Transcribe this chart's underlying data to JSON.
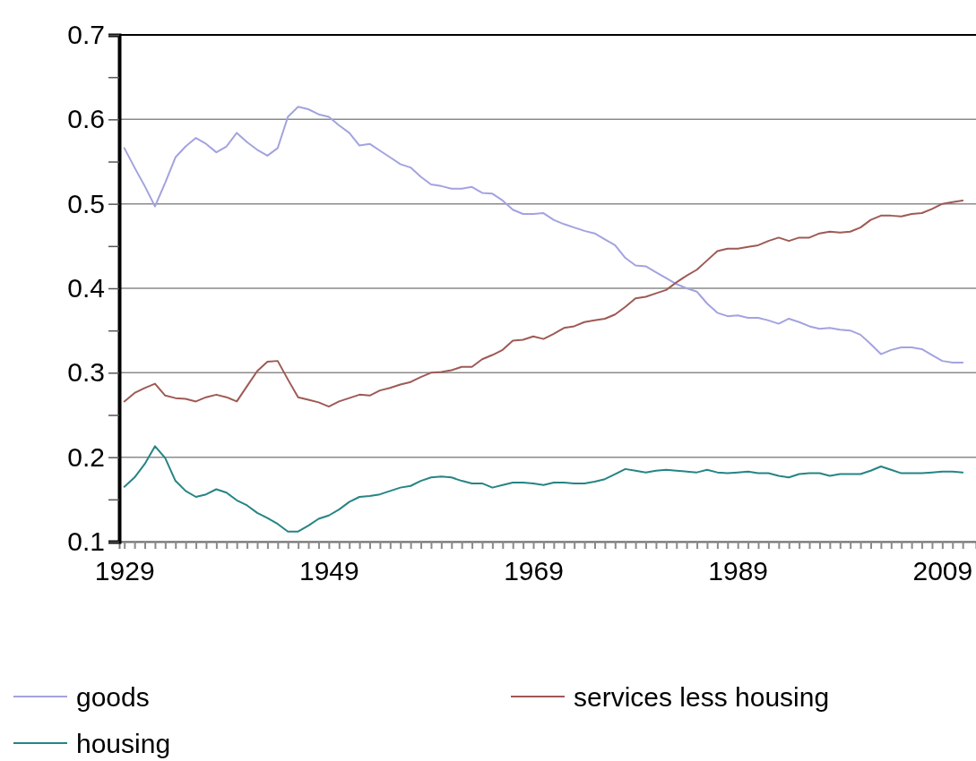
{
  "chart_data": {
    "type": "line",
    "x": [
      1929,
      1930,
      1931,
      1932,
      1933,
      1934,
      1935,
      1936,
      1937,
      1938,
      1939,
      1940,
      1941,
      1942,
      1943,
      1944,
      1945,
      1946,
      1947,
      1948,
      1949,
      1950,
      1951,
      1952,
      1953,
      1954,
      1955,
      1956,
      1957,
      1958,
      1959,
      1960,
      1961,
      1962,
      1963,
      1964,
      1965,
      1966,
      1967,
      1968,
      1969,
      1970,
      1971,
      1972,
      1973,
      1974,
      1975,
      1976,
      1977,
      1978,
      1979,
      1980,
      1981,
      1982,
      1983,
      1984,
      1985,
      1986,
      1987,
      1988,
      1989,
      1990,
      1991,
      1992,
      1993,
      1994,
      1995,
      1996,
      1997,
      1998,
      1999,
      2000,
      2001,
      2002,
      2003,
      2004,
      2005,
      2006,
      2007,
      2008,
      2009,
      2010,
      2011
    ],
    "series": [
      {
        "name": "goods",
        "color": "#a3a3e0",
        "values": [
          0.566,
          0.543,
          0.521,
          0.497,
          0.525,
          0.555,
          0.568,
          0.578,
          0.571,
          0.561,
          0.568,
          0.584,
          0.573,
          0.564,
          0.557,
          0.566,
          0.603,
          0.615,
          0.612,
          0.606,
          0.603,
          0.593,
          0.584,
          0.569,
          0.571,
          0.563,
          0.555,
          0.547,
          0.543,
          0.532,
          0.523,
          0.521,
          0.518,
          0.518,
          0.52,
          0.513,
          0.512,
          0.504,
          0.493,
          0.488,
          0.488,
          0.489,
          0.481,
          0.476,
          0.472,
          0.468,
          0.465,
          0.458,
          0.451,
          0.436,
          0.427,
          0.426,
          0.419,
          0.412,
          0.405,
          0.4,
          0.396,
          0.382,
          0.371,
          0.367,
          0.368,
          0.365,
          0.365,
          0.362,
          0.358,
          0.364,
          0.36,
          0.355,
          0.352,
          0.353,
          0.351,
          0.35,
          0.345,
          0.334,
          0.322,
          0.327,
          0.33,
          0.33,
          0.328,
          0.321,
          0.314,
          0.312,
          0.312
        ]
      },
      {
        "name": "services less housing",
        "color": "#9e5a55",
        "values": [
          0.266,
          0.276,
          0.282,
          0.287,
          0.273,
          0.27,
          0.269,
          0.266,
          0.271,
          0.274,
          0.271,
          0.266,
          0.284,
          0.302,
          0.313,
          0.314,
          0.292,
          0.271,
          0.268,
          0.265,
          0.26,
          0.266,
          0.27,
          0.274,
          0.273,
          0.279,
          0.282,
          0.286,
          0.289,
          0.295,
          0.3,
          0.301,
          0.303,
          0.307,
          0.307,
          0.316,
          0.321,
          0.327,
          0.338,
          0.339,
          0.343,
          0.34,
          0.346,
          0.353,
          0.355,
          0.36,
          0.362,
          0.364,
          0.369,
          0.378,
          0.388,
          0.39,
          0.394,
          0.398,
          0.407,
          0.415,
          0.422,
          0.433,
          0.444,
          0.447,
          0.447,
          0.449,
          0.451,
          0.456,
          0.46,
          0.456,
          0.46,
          0.46,
          0.465,
          0.467,
          0.466,
          0.467,
          0.472,
          0.481,
          0.486,
          0.486,
          0.485,
          0.488,
          0.489,
          0.494,
          0.5,
          0.502,
          0.504
        ]
      },
      {
        "name": "housing",
        "color": "#268484",
        "values": [
          0.165,
          0.176,
          0.192,
          0.213,
          0.199,
          0.172,
          0.16,
          0.153,
          0.156,
          0.162,
          0.158,
          0.149,
          0.143,
          0.134,
          0.128,
          0.121,
          0.112,
          0.112,
          0.119,
          0.127,
          0.131,
          0.138,
          0.147,
          0.153,
          0.154,
          0.156,
          0.16,
          0.164,
          0.166,
          0.172,
          0.176,
          0.177,
          0.176,
          0.172,
          0.169,
          0.169,
          0.164,
          0.167,
          0.17,
          0.17,
          0.169,
          0.167,
          0.17,
          0.17,
          0.169,
          0.169,
          0.171,
          0.174,
          0.18,
          0.186,
          0.184,
          0.182,
          0.184,
          0.185,
          0.184,
          0.183,
          0.182,
          0.185,
          0.182,
          0.181,
          0.182,
          0.183,
          0.181,
          0.181,
          0.178,
          0.176,
          0.18,
          0.181,
          0.181,
          0.178,
          0.18,
          0.18,
          0.18,
          0.184,
          0.189,
          0.185,
          0.181,
          0.181,
          0.181,
          0.182,
          0.183,
          0.183,
          0.182
        ]
      }
    ],
    "xlim": [
      1928.5,
      2012.3
    ],
    "xticks": [
      1929,
      {
        "value": 1930,
        "label": null
      },
      {
        "value": 1931,
        "label": null
      },
      {
        "value": 1932,
        "label": null
      },
      {
        "value": 1933,
        "label": null
      },
      {
        "value": 1934,
        "label": null
      },
      {
        "value": 1935,
        "label": null
      },
      {
        "value": 1936,
        "label": null
      },
      {
        "value": 1937,
        "label": null
      },
      {
        "value": 1938,
        "label": null
      },
      {
        "value": 1939,
        "label": null
      },
      {
        "value": 1940,
        "label": null
      },
      {
        "value": 1941,
        "label": null
      },
      {
        "value": 1942,
        "label": null
      },
      {
        "value": 1943,
        "label": null
      },
      {
        "value": 1944,
        "label": null
      },
      {
        "value": 1945,
        "label": null
      },
      {
        "value": 1946,
        "label": null
      },
      {
        "value": 1947,
        "label": null
      },
      {
        "value": 1948,
        "label": null
      },
      1949,
      {
        "value": 1950,
        "label": null
      },
      {
        "value": 1951,
        "label": null
      },
      {
        "value": 1952,
        "label": null
      },
      {
        "value": 1953,
        "label": null
      },
      {
        "value": 1954,
        "label": null
      },
      {
        "value": 1955,
        "label": null
      },
      {
        "value": 1956,
        "label": null
      },
      {
        "value": 1957,
        "label": null
      },
      {
        "value": 1958,
        "label": null
      },
      {
        "value": 1959,
        "label": null
      },
      {
        "value": 1960,
        "label": null
      },
      {
        "value": 1961,
        "label": null
      },
      {
        "value": 1962,
        "label": null
      },
      {
        "value": 1963,
        "label": null
      },
      {
        "value": 1964,
        "label": null
      },
      {
        "value": 1965,
        "label": null
      },
      {
        "value": 1966,
        "label": null
      },
      {
        "value": 1967,
        "label": null
      },
      {
        "value": 1968,
        "label": null
      },
      1969,
      {
        "value": 1970,
        "label": null
      },
      {
        "value": 1971,
        "label": null
      },
      {
        "value": 1972,
        "label": null
      },
      {
        "value": 1973,
        "label": null
      },
      {
        "value": 1974,
        "label": null
      },
      {
        "value": 1975,
        "label": null
      },
      {
        "value": 1976,
        "label": null
      },
      {
        "value": 1977,
        "label": null
      },
      {
        "value": 1978,
        "label": null
      },
      {
        "value": 1979,
        "label": null
      },
      {
        "value": 1980,
        "label": null
      },
      {
        "value": 1981,
        "label": null
      },
      {
        "value": 1982,
        "label": null
      },
      {
        "value": 1983,
        "label": null
      },
      {
        "value": 1984,
        "label": null
      },
      {
        "value": 1985,
        "label": null
      },
      {
        "value": 1986,
        "label": null
      },
      {
        "value": 1987,
        "label": null
      },
      {
        "value": 1988,
        "label": null
      },
      1989,
      {
        "value": 1990,
        "label": null
      },
      {
        "value": 1991,
        "label": null
      },
      {
        "value": 1992,
        "label": null
      },
      {
        "value": 1993,
        "label": null
      },
      {
        "value": 1994,
        "label": null
      },
      {
        "value": 1995,
        "label": null
      },
      {
        "value": 1996,
        "label": null
      },
      {
        "value": 1997,
        "label": null
      },
      {
        "value": 1998,
        "label": null
      },
      {
        "value": 1999,
        "label": null
      },
      {
        "value": 2000,
        "label": null
      },
      {
        "value": 2001,
        "label": null
      },
      {
        "value": 2002,
        "label": null
      },
      {
        "value": 2003,
        "label": null
      },
      {
        "value": 2004,
        "label": null
      },
      {
        "value": 2005,
        "label": null
      },
      {
        "value": 2006,
        "label": null
      },
      {
        "value": 2007,
        "label": null
      },
      {
        "value": 2008,
        "label": null
      },
      2009,
      {
        "value": 2010,
        "label": null
      },
      {
        "value": 2011,
        "label": null
      }
    ],
    "ylim": [
      0.1,
      0.7
    ],
    "yticks": [
      0.1,
      {
        "value": 0.15,
        "label": null
      },
      0.2,
      {
        "value": 0.25,
        "label": null
      },
      0.3,
      {
        "value": 0.35,
        "label": null
      },
      0.4,
      {
        "value": 0.45,
        "label": null
      },
      0.5,
      {
        "value": 0.55,
        "label": null
      },
      0.6,
      {
        "value": 0.65,
        "label": null
      },
      0.7
    ],
    "grid": "y",
    "legend": "bottom",
    "marker": "none",
    "line_style": "solid"
  }
}
